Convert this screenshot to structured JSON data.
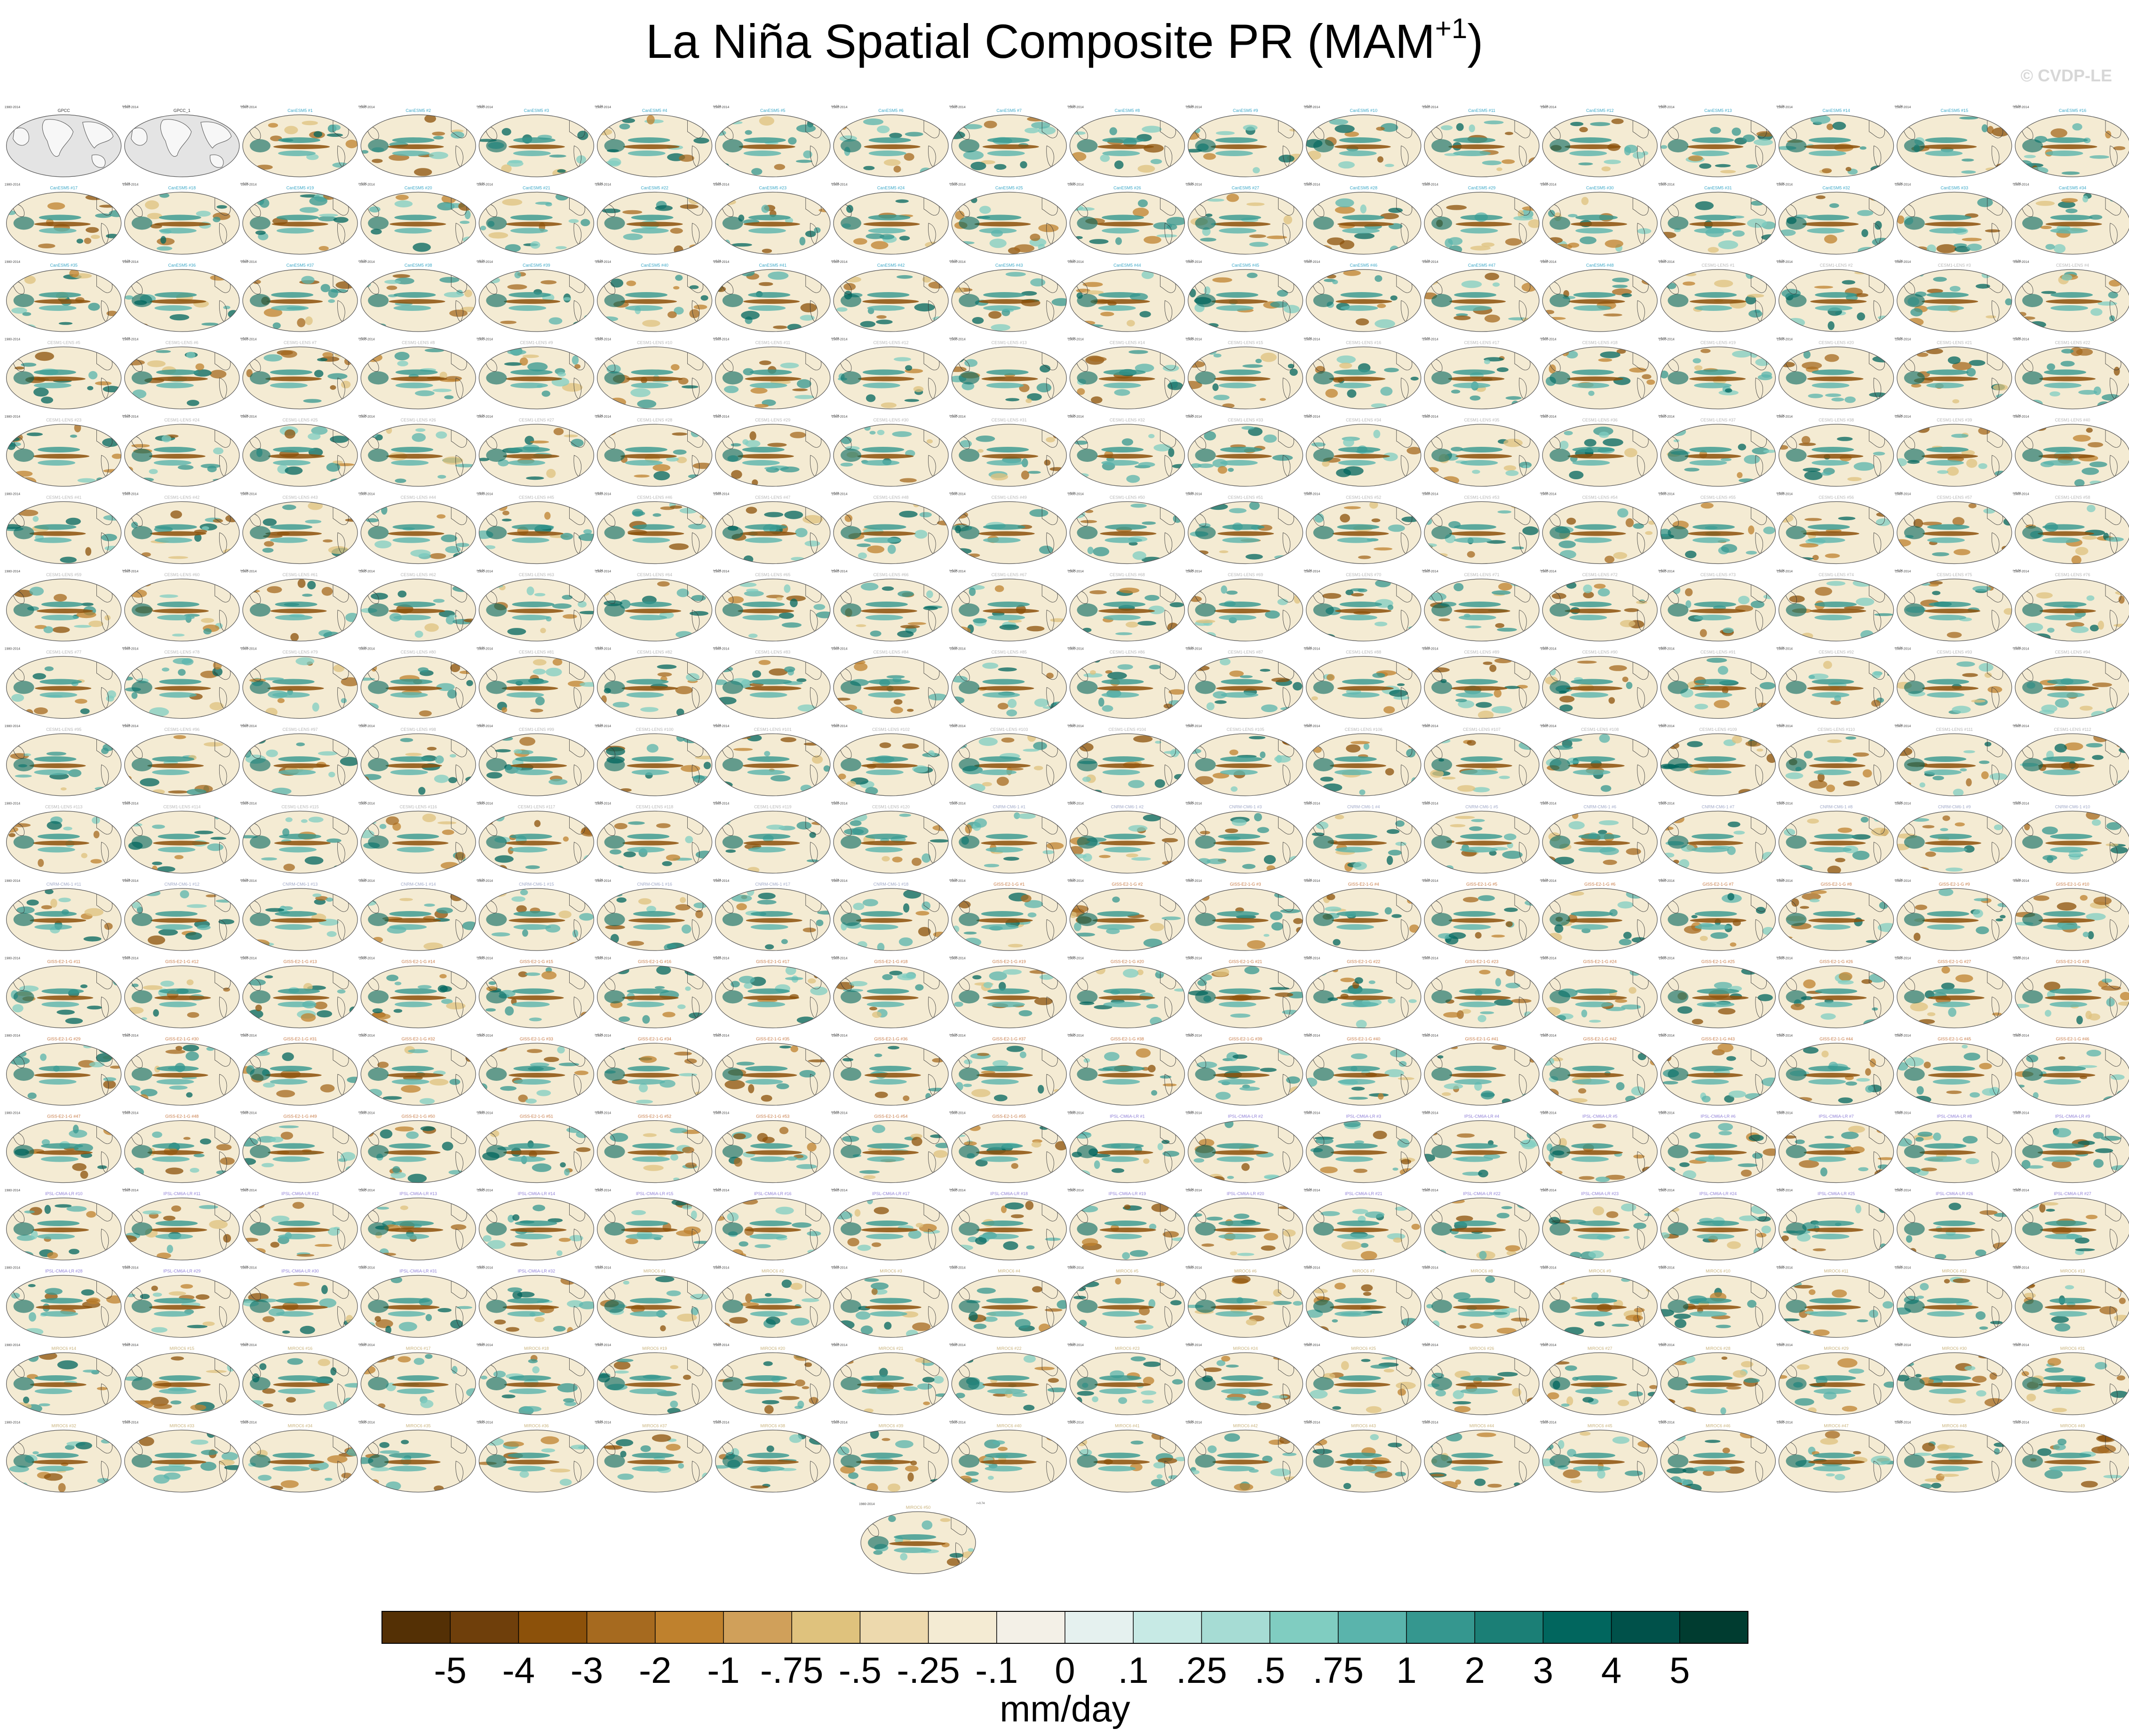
{
  "figure": {
    "title_main": "La Niña Spatial Composite PR (MAM",
    "title_sup": "+1",
    "title_close": ")",
    "copyright": "© CVDP-LE"
  },
  "panels": {
    "rows": 18,
    "cols": 18,
    "extra_panel_count": 1,
    "left_label": "1980-2014",
    "right_label": "r=0.74",
    "observations": [
      {
        "title": "GPCC",
        "note": "land-only observational panel"
      },
      {
        "title": "GPCC_1",
        "note": "land-only observational panel"
      }
    ],
    "model_groups": [
      {
        "model": "CanESM5",
        "color": "#39a7c7",
        "count": 48
      },
      {
        "model": "CESM1-LENS",
        "color": "#b7b7b7",
        "count": 120
      },
      {
        "model": "CNRM-CM6-1",
        "color": "#9fa8c7",
        "count": 18
      },
      {
        "model": "GISS-E2-1-G",
        "color": "#c77a45",
        "count": 55
      },
      {
        "model": "IPSL-CM6A-LR",
        "color": "#8f7fd6",
        "count": 32
      },
      {
        "model": "MIROC6",
        "color": "#c9b27a",
        "count": 50
      }
    ]
  },
  "chart_data": {
    "type": "heatmap",
    "title": "La Niña Spatial Composite PR (MAM+1)",
    "colorbar": {
      "label": "mm/day",
      "levels": [
        "-5",
        "-4",
        "-3",
        "-2",
        "-1",
        "-.75",
        "-.5",
        "-.25",
        "-.1",
        "0",
        ".1",
        ".25",
        ".5",
        ".75",
        "1",
        "2",
        "3",
        "4",
        "5"
      ],
      "colors": [
        "#543005",
        "#6f3f0b",
        "#8c510a",
        "#a66a1f",
        "#bf812d",
        "#d0a05a",
        "#dfc27d",
        "#edd9ad",
        "#f4ebd3",
        "#f3f0e7",
        "#e5f1ef",
        "#c7eae5",
        "#a6dcd4",
        "#80cdc1",
        "#5ab4ac",
        "#35978f",
        "#1b7f76",
        "#01665e",
        "#00514a",
        "#003c30"
      ]
    },
    "panel_count": 325,
    "grid": "18 x 18 plus 1"
  }
}
